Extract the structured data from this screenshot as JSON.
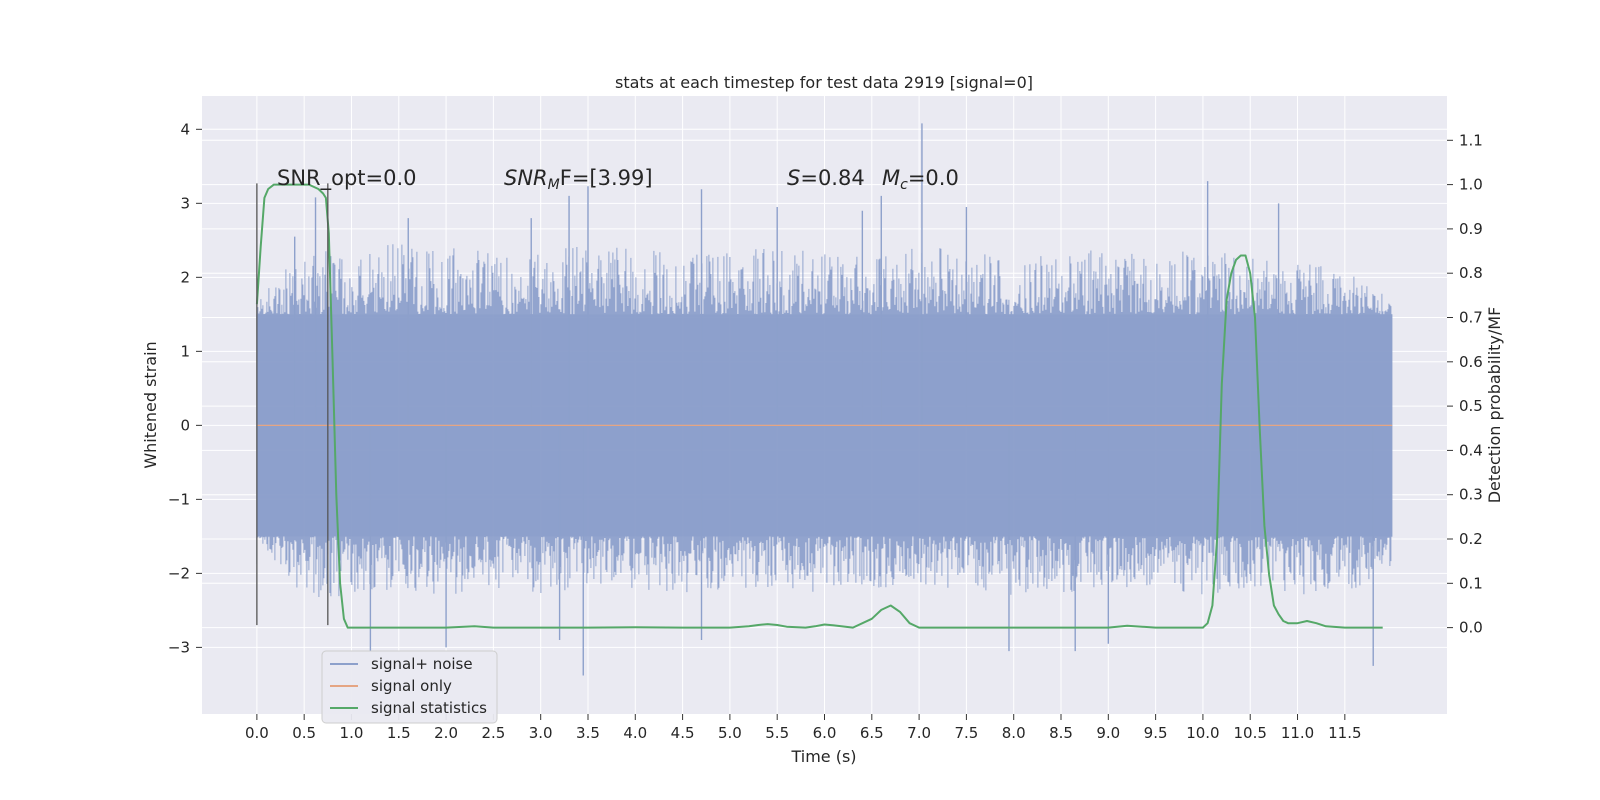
{
  "chart_data": {
    "type": "line",
    "title": "stats at each timestep for test data 2919 [signal=0]",
    "xlabel": "Time (s)",
    "ylabel_left": "Whitened strain",
    "ylabel_right": "Detection probability/MF",
    "xlim": [
      -0.58,
      12.58
    ],
    "ylim_left": [
      -3.9,
      4.45
    ],
    "ylim_right": [
      -0.195,
      1.2
    ],
    "x_ticks": [
      "0.0",
      "0.5",
      "1.0",
      "1.5",
      "2.0",
      "2.5",
      "3.0",
      "3.5",
      "4.0",
      "4.5",
      "5.0",
      "5.5",
      "6.0",
      "6.5",
      "7.0",
      "7.5",
      "8.0",
      "8.5",
      "9.0",
      "9.5",
      "10.0",
      "10.5",
      "11.0",
      "11.5"
    ],
    "y_ticks_left": [
      "4",
      "3",
      "2",
      "1",
      "0",
      "−1",
      "−2",
      "−3"
    ],
    "y_ticks_right": [
      "1.1",
      "1.0",
      "0.9",
      "0.8",
      "0.7",
      "0.6",
      "0.5",
      "0.4",
      "0.3",
      "0.2",
      "0.1",
      "0.0"
    ],
    "grid": true,
    "legend_position": "lower-left",
    "annotations": {
      "snr_opt": "SNR_opt=0.0",
      "snr_mf_base": "SNR",
      "snr_mf_sub": "M",
      "snr_mf_rest": "F=[3.99]",
      "s_var": "S",
      "s_rest": "=0.84",
      "mc_var": "M",
      "mc_sub": "c",
      "mc_rest": "=0.0"
    },
    "vertical_markers": [
      {
        "x": 0.0,
        "y_range": [
          -2.7,
          3.27
        ]
      },
      {
        "x": 0.75,
        "y_range": [
          -2.7,
          3.27
        ]
      }
    ],
    "series": [
      {
        "name": "signal+ noise",
        "color": "#8da0cb",
        "axis": "left",
        "x_range": [
          0.0,
          12.0
        ],
        "typical_band": [
          -1.5,
          1.5
        ],
        "envelope_upper": [
          [
            0.0,
            1.7
          ],
          [
            0.5,
            2.4
          ],
          [
            1.0,
            2.3
          ],
          [
            1.5,
            2.5
          ],
          [
            2.0,
            2.4
          ],
          [
            2.5,
            2.4
          ],
          [
            3.0,
            2.5
          ],
          [
            3.5,
            2.4
          ],
          [
            4.0,
            2.4
          ],
          [
            4.5,
            2.3
          ],
          [
            5.0,
            2.4
          ],
          [
            5.5,
            2.4
          ],
          [
            6.0,
            2.4
          ],
          [
            6.5,
            2.3
          ],
          [
            7.0,
            2.4
          ],
          [
            7.5,
            2.4
          ],
          [
            8.0,
            2.3
          ],
          [
            8.5,
            2.3
          ],
          [
            9.0,
            2.4
          ],
          [
            9.5,
            2.3
          ],
          [
            10.0,
            2.4
          ],
          [
            10.5,
            2.3
          ],
          [
            11.0,
            2.2
          ],
          [
            11.5,
            2.1
          ],
          [
            12.0,
            1.7
          ]
        ],
        "envelope_lower": [
          [
            0.0,
            -1.5
          ],
          [
            0.5,
            -2.4
          ],
          [
            1.0,
            -2.3
          ],
          [
            1.5,
            -2.2
          ],
          [
            2.0,
            -2.3
          ],
          [
            2.5,
            -2.2
          ],
          [
            3.0,
            -2.3
          ],
          [
            3.5,
            -2.2
          ],
          [
            4.0,
            -2.2
          ],
          [
            4.5,
            -2.3
          ],
          [
            5.0,
            -2.2
          ],
          [
            5.5,
            -2.2
          ],
          [
            6.0,
            -2.3
          ],
          [
            6.5,
            -2.2
          ],
          [
            7.0,
            -2.2
          ],
          [
            7.5,
            -2.2
          ],
          [
            8.0,
            -2.3
          ],
          [
            8.5,
            -2.3
          ],
          [
            9.0,
            -2.2
          ],
          [
            9.5,
            -2.2
          ],
          [
            10.0,
            -2.3
          ],
          [
            10.5,
            -2.2
          ],
          [
            11.0,
            -2.3
          ],
          [
            11.5,
            -2.3
          ],
          [
            12.0,
            -1.9
          ]
        ],
        "spikes": [
          [
            0.4,
            2.55
          ],
          [
            0.62,
            3.08
          ],
          [
            1.6,
            2.8
          ],
          [
            2.9,
            2.8
          ],
          [
            3.3,
            3.1
          ],
          [
            3.5,
            3.23
          ],
          [
            4.7,
            3.19
          ],
          [
            5.5,
            2.95
          ],
          [
            6.4,
            2.9
          ],
          [
            6.6,
            3.1
          ],
          [
            7.03,
            4.08
          ],
          [
            7.5,
            2.95
          ],
          [
            10.05,
            3.3
          ],
          [
            10.8,
            3.0
          ],
          [
            1.2,
            -3.05
          ],
          [
            2.0,
            -3.0
          ],
          [
            3.2,
            -2.9
          ],
          [
            3.45,
            -3.38
          ],
          [
            4.7,
            -2.9
          ],
          [
            7.95,
            -3.05
          ],
          [
            8.65,
            -3.05
          ],
          [
            9.0,
            -2.95
          ],
          [
            11.8,
            -3.25
          ]
        ]
      },
      {
        "name": "signal only",
        "color": "#e5a583",
        "axis": "left",
        "x": [
          0.0,
          12.0
        ],
        "y": [
          0.0,
          0.0
        ]
      },
      {
        "name": "signal statistics",
        "color": "#55a868",
        "axis": "right",
        "x": [
          0.0,
          0.04,
          0.08,
          0.12,
          0.18,
          0.25,
          0.35,
          0.45,
          0.55,
          0.65,
          0.7,
          0.73,
          0.76,
          0.8,
          0.84,
          0.88,
          0.92,
          0.96,
          1.0,
          1.1,
          1.5,
          2.0,
          2.3,
          2.5,
          2.8,
          3.0,
          3.5,
          4.0,
          4.5,
          5.0,
          5.2,
          5.3,
          5.4,
          5.5,
          5.6,
          5.8,
          5.9,
          6.0,
          6.1,
          6.3,
          6.5,
          6.6,
          6.7,
          6.8,
          6.9,
          7.0,
          7.5,
          8.0,
          8.5,
          9.0,
          9.2,
          9.5,
          10.0,
          10.05,
          10.1,
          10.15,
          10.2,
          10.25,
          10.3,
          10.35,
          10.4,
          10.45,
          10.5,
          10.55,
          10.6,
          10.65,
          10.7,
          10.75,
          10.8,
          10.85,
          10.9,
          11.0,
          11.1,
          11.2,
          11.3,
          11.5,
          11.9
        ],
        "y": [
          0.73,
          0.86,
          0.97,
          0.99,
          1.0,
          1.0,
          1.0,
          1.0,
          1.0,
          0.99,
          0.98,
          0.97,
          0.89,
          0.6,
          0.3,
          0.1,
          0.02,
          0.0,
          0.0,
          0.0,
          0.0,
          0.0,
          0.003,
          0.0,
          0.0,
          0.0,
          0.0,
          0.001,
          0.0,
          0.0,
          0.003,
          0.006,
          0.008,
          0.006,
          0.002,
          0.0,
          0.003,
          0.007,
          0.005,
          0.0,
          0.02,
          0.04,
          0.05,
          0.035,
          0.01,
          0.0,
          0.0,
          0.0,
          0.0,
          0.0,
          0.004,
          0.0,
          0.0,
          0.01,
          0.05,
          0.2,
          0.55,
          0.74,
          0.8,
          0.83,
          0.84,
          0.84,
          0.8,
          0.7,
          0.45,
          0.23,
          0.12,
          0.05,
          0.03,
          0.015,
          0.01,
          0.01,
          0.015,
          0.01,
          0.003,
          0.0,
          0.0
        ]
      }
    ]
  }
}
